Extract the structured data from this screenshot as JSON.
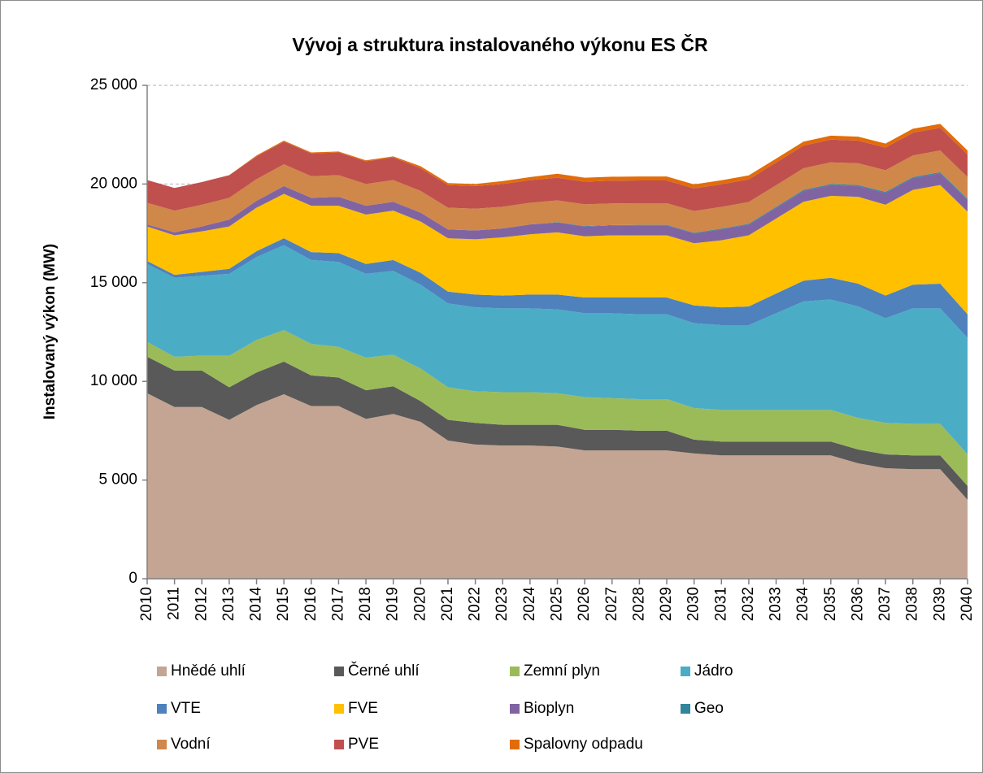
{
  "chart_data": {
    "type": "stacked_area",
    "title": "Vývoj a struktura instalovaného výkonu ES ČR",
    "y_label": "Instalovaný výkon (MW)",
    "categories": [
      "2010",
      "2011",
      "2012",
      "2013",
      "2014",
      "2015",
      "2016",
      "2017",
      "2018",
      "2019",
      "2020",
      "2021",
      "2022",
      "2023",
      "2024",
      "2025",
      "2026",
      "2027",
      "2028",
      "2029",
      "2030",
      "2031",
      "2032",
      "2033",
      "2034",
      "2035",
      "2036",
      "2037",
      "2038",
      "2039",
      "2040"
    ],
    "ylim": [
      0,
      25000
    ],
    "yticks": [
      0,
      {
        "value": 5000,
        "label": "5 000"
      },
      {
        "value": 10000,
        "label": "10 000"
      },
      {
        "value": 15000,
        "label": "15 000"
      },
      {
        "value": 20000,
        "label": "20 000"
      },
      {
        "value": 25000,
        "label": "25 000"
      }
    ],
    "grid": true,
    "legend": "bottom",
    "series": [
      {
        "name": "Hnědé uhlí",
        "color": "#c4a593",
        "values": [
          9400,
          8700,
          8700,
          8050,
          8800,
          9350,
          8750,
          8750,
          8100,
          8350,
          7950,
          7000,
          6800,
          6750,
          6750,
          6700,
          6500,
          6500,
          6500,
          6500,
          6350,
          6250,
          6250,
          6250,
          6250,
          6250,
          5850,
          5600,
          5550,
          5550,
          4000
        ]
      },
      {
        "name": "Černé uhlí",
        "color": "#595959",
        "values": [
          1850,
          1850,
          1850,
          1650,
          1650,
          1650,
          1550,
          1450,
          1450,
          1400,
          1050,
          1050,
          1100,
          1050,
          1050,
          1100,
          1050,
          1050,
          1000,
          1000,
          700,
          700,
          700,
          700,
          700,
          700,
          700,
          700,
          700,
          700,
          700
        ]
      },
      {
        "name": "Zemní plyn",
        "color": "#9bbb59",
        "values": [
          750,
          700,
          750,
          1600,
          1650,
          1600,
          1600,
          1550,
          1650,
          1600,
          1650,
          1650,
          1600,
          1650,
          1650,
          1600,
          1650,
          1600,
          1600,
          1600,
          1600,
          1600,
          1600,
          1600,
          1600,
          1600,
          1600,
          1600,
          1600,
          1600,
          1600
        ]
      },
      {
        "name": "Jádro",
        "color": "#4bacc6",
        "values": [
          3950,
          4000,
          4050,
          4150,
          4200,
          4300,
          4250,
          4300,
          4250,
          4250,
          4250,
          4250,
          4250,
          4250,
          4250,
          4250,
          4250,
          4300,
          4300,
          4300,
          4300,
          4300,
          4300,
          4900,
          5500,
          5600,
          5650,
          5300,
          5850,
          5850,
          5900
        ]
      },
      {
        "name": "VTE",
        "color": "#4f81bd",
        "values": [
          150,
          150,
          200,
          250,
          300,
          350,
          400,
          450,
          500,
          550,
          600,
          600,
          650,
          650,
          700,
          750,
          800,
          800,
          850,
          850,
          900,
          900,
          950,
          1000,
          1050,
          1100,
          1150,
          1150,
          1200,
          1250,
          1200
        ]
      },
      {
        "name": "FVE",
        "color": "#ffc000",
        "values": [
          1750,
          2000,
          2050,
          2150,
          2200,
          2250,
          2350,
          2400,
          2500,
          2500,
          2600,
          2700,
          2800,
          2950,
          3050,
          3150,
          3100,
          3150,
          3150,
          3150,
          3150,
          3400,
          3600,
          3800,
          4000,
          4150,
          4400,
          4600,
          4800,
          5000,
          5200
        ]
      },
      {
        "name": "Bioplyn",
        "color": "#8064a2",
        "values": [
          100,
          150,
          250,
          350,
          350,
          400,
          400,
          450,
          450,
          450,
          450,
          450,
          450,
          450,
          500,
          500,
          500,
          500,
          500,
          500,
          500,
          550,
          550,
          550,
          550,
          550,
          550,
          600,
          600,
          600,
          600
        ]
      },
      {
        "name": "Geo",
        "color": "#31859c",
        "values": [
          0,
          0,
          0,
          0,
          0,
          0,
          0,
          0,
          0,
          0,
          0,
          0,
          0,
          0,
          0,
          20,
          20,
          20,
          30,
          30,
          30,
          40,
          40,
          40,
          50,
          50,
          50,
          50,
          50,
          50,
          50
        ]
      },
      {
        "name": "Vodní",
        "color": "#d0874a",
        "values": [
          1100,
          1100,
          1100,
          1100,
          1100,
          1100,
          1100,
          1100,
          1100,
          1100,
          1100,
          1100,
          1100,
          1100,
          1100,
          1100,
          1100,
          1100,
          1100,
          1100,
          1100,
          1100,
          1100,
          1100,
          1100,
          1100,
          1100,
          1100,
          1100,
          1100,
          1100
        ]
      },
      {
        "name": "PVE",
        "color": "#c0504d",
        "values": [
          1150,
          1150,
          1150,
          1150,
          1150,
          1150,
          1150,
          1150,
          1150,
          1150,
          1150,
          1150,
          1150,
          1150,
          1150,
          1150,
          1150,
          1150,
          1150,
          1150,
          1150,
          1150,
          1150,
          1150,
          1150,
          1150,
          1150,
          1150,
          1150,
          1150,
          1150
        ]
      },
      {
        "name": "Spalovny odpadu",
        "color": "#e36c0a",
        "values": [
          0,
          0,
          0,
          0,
          50,
          50,
          50,
          50,
          50,
          50,
          100,
          100,
          100,
          150,
          150,
          200,
          200,
          200,
          200,
          200,
          200,
          200,
          200,
          200,
          200,
          200,
          200,
          200,
          200,
          200,
          200
        ]
      }
    ]
  }
}
